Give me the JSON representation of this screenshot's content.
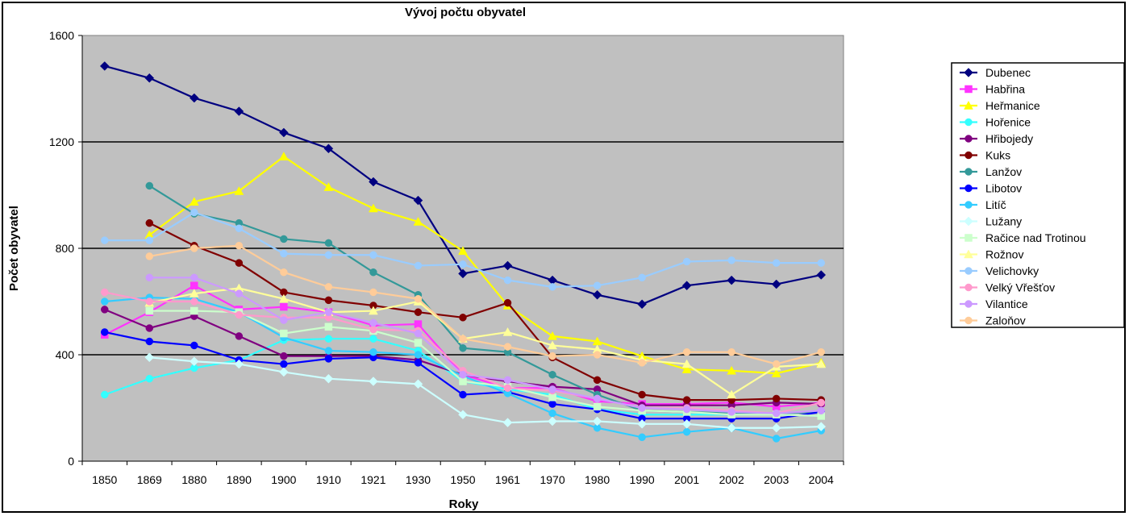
{
  "chart_data": {
    "type": "line",
    "title": "Vývoj počtu obyvatel",
    "xlabel": "Roky",
    "ylabel": "Počet obyvatel",
    "ylim": [
      0,
      1600
    ],
    "yticks": [
      0,
      400,
      800,
      1200,
      1600
    ],
    "grid": "horizontal major lines",
    "legend_position": "right",
    "plot_background": "#c0c0c0",
    "categories": [
      "1850",
      "1869",
      "1880",
      "1890",
      "1900",
      "1910",
      "1921",
      "1930",
      "1950",
      "1961",
      "1970",
      "1980",
      "1990",
      "2001",
      "2002",
      "2003",
      "2004"
    ],
    "series": [
      {
        "name": "Dubenec",
        "color": "#000080",
        "marker": "diamond",
        "values": [
          1485,
          1440,
          1365,
          1315,
          1235,
          1175,
          1050,
          980,
          705,
          735,
          680,
          625,
          590,
          660,
          680,
          665,
          700
        ]
      },
      {
        "name": "Habřina",
        "color": "#ff33ff",
        "marker": "square",
        "values": [
          475,
          560,
          660,
          570,
          580,
          560,
          510,
          515,
          325,
          275,
          275,
          225,
          215,
          215,
          220,
          205,
          220
        ]
      },
      {
        "name": "Heřmanice",
        "color": "#ffff00",
        "marker": "triangle",
        "values": [
          null,
          850,
          975,
          1015,
          1145,
          1030,
          950,
          900,
          790,
          585,
          470,
          450,
          395,
          345,
          340,
          330,
          370
        ]
      },
      {
        "name": "Hořenice",
        "color": "#33ffff",
        "marker": "circle",
        "values": [
          250,
          310,
          350,
          380,
          455,
          460,
          460,
          415,
          300,
          270,
          250,
          195,
          175,
          175,
          175,
          175,
          170
        ]
      },
      {
        "name": "Hřibojedy",
        "color": "#800080",
        "marker": "circle",
        "values": [
          570,
          500,
          545,
          470,
          395,
          395,
          395,
          380,
          325,
          300,
          280,
          270,
          210,
          210,
          210,
          220,
          215
        ]
      },
      {
        "name": "Kuks",
        "color": "#800000",
        "marker": "circle",
        "values": [
          null,
          895,
          810,
          745,
          635,
          605,
          585,
          560,
          540,
          595,
          390,
          305,
          250,
          230,
          230,
          235,
          230
        ]
      },
      {
        "name": "Lanžov",
        "color": "#339999",
        "marker": "circle",
        "values": [
          null,
          1035,
          930,
          895,
          835,
          820,
          710,
          625,
          425,
          410,
          325,
          250,
          190,
          185,
          180,
          180,
          185
        ]
      },
      {
        "name": "Libotov",
        "color": "#0000ff",
        "marker": "circle",
        "values": [
          485,
          450,
          435,
          380,
          365,
          385,
          390,
          370,
          250,
          260,
          215,
          195,
          160,
          160,
          160,
          160,
          185
        ]
      },
      {
        "name": "Litíč",
        "color": "#33ccff",
        "marker": "circle",
        "values": [
          600,
          615,
          610,
          560,
          465,
          415,
          410,
          400,
          320,
          255,
          180,
          125,
          90,
          110,
          125,
          85,
          115
        ]
      },
      {
        "name": "Lužany",
        "color": "#ccffff",
        "marker": "diamond",
        "values": [
          null,
          390,
          375,
          365,
          335,
          310,
          300,
          290,
          175,
          145,
          150,
          150,
          140,
          140,
          125,
          125,
          130
        ]
      },
      {
        "name": "Račice nad Trotinou",
        "color": "#ccffcc",
        "marker": "square",
        "values": [
          null,
          565,
          565,
          560,
          480,
          505,
          490,
          445,
          300,
          280,
          240,
          205,
          190,
          185,
          175,
          175,
          170
        ]
      },
      {
        "name": "Rožnov",
        "color": "#ffff99",
        "marker": "triangle",
        "values": [
          null,
          595,
          630,
          650,
          610,
          560,
          565,
          600,
          460,
          485,
          435,
          420,
          380,
          365,
          250,
          355,
          365
        ]
      },
      {
        "name": "Velichovky",
        "color": "#99ccff",
        "marker": "circle",
        "values": [
          830,
          830,
          935,
          875,
          780,
          775,
          775,
          735,
          740,
          680,
          655,
          660,
          690,
          750,
          755,
          745,
          745
        ]
      },
      {
        "name": "Velký Vřešťov",
        "color": "#ff99cc",
        "marker": "circle",
        "values": [
          635,
          600,
          600,
          550,
          540,
          540,
          495,
          490,
          340,
          275,
          265,
          235,
          200,
          200,
          190,
          180,
          220
        ]
      },
      {
        "name": "Vilantice",
        "color": "#cc99ff",
        "marker": "circle",
        "values": [
          null,
          690,
          690,
          630,
          530,
          560,
          520,
          480,
          325,
          305,
          270,
          235,
          200,
          195,
          185,
          180,
          190
        ]
      },
      {
        "name": "Zaloňov",
        "color": "#ffcc99",
        "marker": "circle",
        "values": [
          null,
          770,
          800,
          810,
          710,
          655,
          635,
          610,
          460,
          430,
          395,
          400,
          370,
          410,
          410,
          365,
          410
        ]
      }
    ]
  }
}
